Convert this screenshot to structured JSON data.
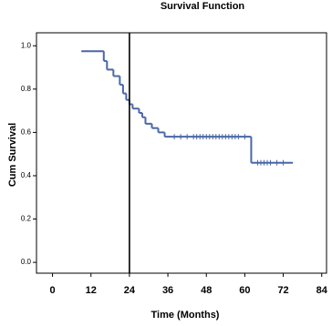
{
  "chart_data": {
    "type": "step",
    "title": "Survival Function",
    "x_label": "Time (Months)",
    "y_label": "Cum Survival",
    "x": [
      9,
      16,
      17,
      19,
      21,
      22,
      23,
      24,
      25,
      27,
      28,
      29,
      31,
      33,
      35,
      62,
      75
    ],
    "values": [
      0.975,
      0.93,
      0.89,
      0.86,
      0.82,
      0.78,
      0.75,
      0.73,
      0.71,
      0.69,
      0.67,
      0.64,
      0.62,
      0.6,
      0.58,
      0.46,
      0.46
    ],
    "color": "#4a67a8",
    "censored": {
      "x": [
        38,
        40,
        42,
        44,
        45,
        46,
        47,
        48,
        49,
        50,
        51,
        52,
        53,
        54,
        55,
        56,
        57,
        58,
        60,
        64,
        65,
        66,
        67,
        68,
        70,
        72
      ],
      "values": [
        0.58,
        0.58,
        0.58,
        0.58,
        0.58,
        0.58,
        0.58,
        0.58,
        0.58,
        0.58,
        0.58,
        0.58,
        0.58,
        0.58,
        0.58,
        0.58,
        0.58,
        0.58,
        0.58,
        0.46,
        0.46,
        0.46,
        0.46,
        0.46,
        0.46,
        0.46
      ]
    },
    "vline": 24,
    "xlim": [
      -5,
      85.5
    ],
    "xticks": [
      0,
      12,
      24,
      36,
      48,
      60,
      72,
      84
    ],
    "ylim": [
      -0.05,
      1.06
    ],
    "yticks": [
      {
        "value": 0,
        "label": "0.0"
      },
      0.2,
      0.4,
      0.6,
      0.8,
      {
        "value": 1,
        "label": "1.0"
      }
    ]
  }
}
